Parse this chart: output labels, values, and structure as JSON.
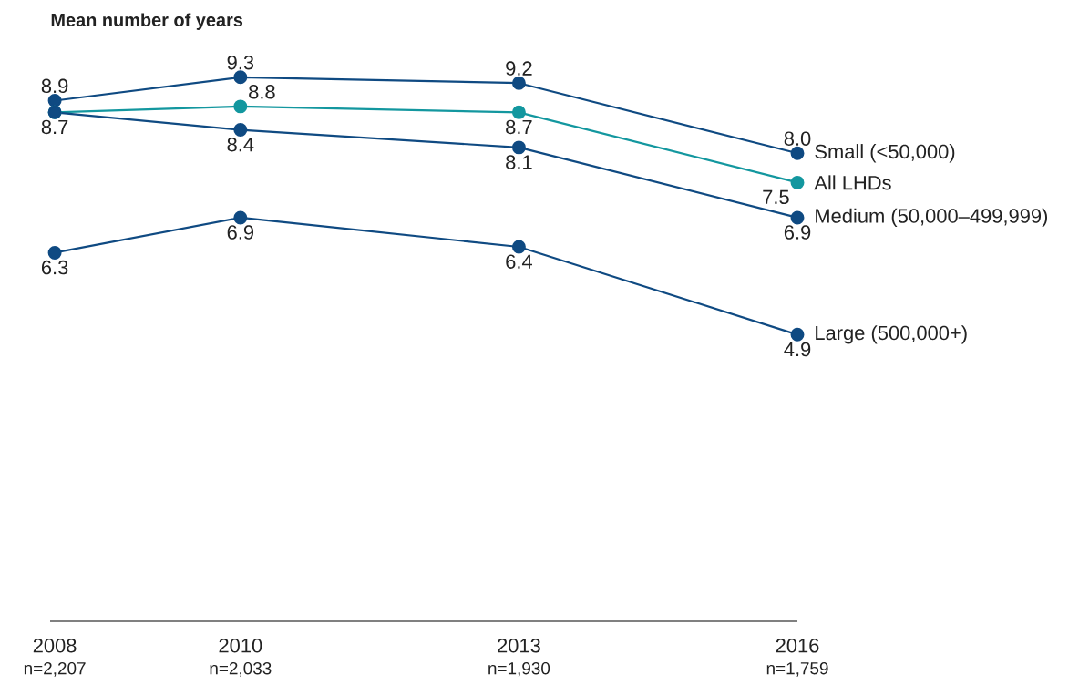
{
  "chart_data": {
    "type": "line",
    "title": "Mean number of years",
    "x": [
      2008,
      2010,
      2013,
      2016
    ],
    "series": [
      {
        "name": "Small (<50,000)",
        "color": "#0f4a82",
        "values": [
          8.9,
          9.3,
          9.2,
          8.0
        ],
        "value_labels": [
          "8.9",
          "9.3",
          "9.2",
          "8.0"
        ]
      },
      {
        "name": "All LHDs",
        "color": "#13979f",
        "values": [
          8.7,
          8.8,
          8.7,
          7.5
        ],
        "value_labels": [
          "8.7",
          "8.8",
          "8.7",
          "7.5"
        ]
      },
      {
        "name": "Medium (50,000–499,999)",
        "color": "#0f4a82",
        "values": [
          8.7,
          8.4,
          8.1,
          6.9
        ],
        "value_labels": [
          null,
          "8.4",
          "8.1",
          "6.9"
        ]
      },
      {
        "name": "Large (500,000+)",
        "color": "#0f4a82",
        "values": [
          6.3,
          6.9,
          6.4,
          4.9
        ],
        "value_labels": [
          "6.3",
          "6.9",
          "6.4",
          "4.9"
        ]
      }
    ],
    "xlim": [
      2007.95,
      2016
    ],
    "xticks": [
      2008,
      2010,
      2013,
      2016
    ],
    "annotations": [
      "n=2,207",
      "n=2,033",
      "n=1,930",
      "n=1,759"
    ],
    "marker": "circle",
    "line_style": "solid",
    "grid": false
  }
}
